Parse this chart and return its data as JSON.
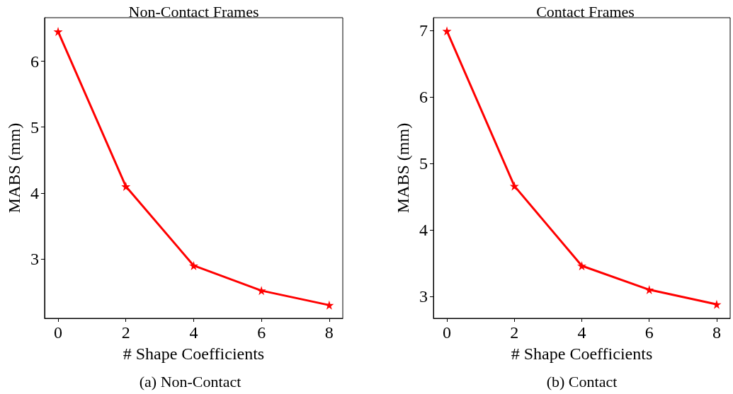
{
  "chart_data": [
    {
      "type": "line",
      "title": "Non-Contact Frames",
      "xlabel": "# Shape Coefficients",
      "ylabel": "MABS (mm)",
      "x": [
        0,
        2,
        4,
        6,
        8
      ],
      "series": [
        {
          "color": "#ff0000",
          "values": [
            6.45,
            4.1,
            2.9,
            2.52,
            2.3
          ]
        }
      ],
      "xlim": [
        -0.4,
        8.4
      ],
      "xticks": [
        0,
        2,
        4,
        6,
        8
      ],
      "ylim": [
        2.1,
        6.66
      ],
      "yticks": [
        3,
        4,
        5,
        6
      ],
      "marker": "star",
      "line_style": "solid",
      "grid": false,
      "annotations": [
        "(a) Non-Contact"
      ]
    },
    {
      "type": "line",
      "title": "Contact Frames",
      "xlabel": "# Shape Coefficients",
      "ylabel": "MABS (mm)",
      "x": [
        0,
        2,
        4,
        6,
        8
      ],
      "series": [
        {
          "color": "#ff0000",
          "values": [
            6.99,
            4.66,
            3.46,
            3.1,
            2.88
          ]
        }
      ],
      "xlim": [
        -0.4,
        8.4
      ],
      "xticks": [
        0,
        2,
        4,
        6,
        8
      ],
      "ylim": [
        2.67,
        7.19
      ],
      "yticks": [
        3,
        4,
        5,
        6,
        7
      ],
      "marker": "star",
      "line_style": "solid",
      "grid": false,
      "annotations": [
        "(b) Contact"
      ]
    }
  ]
}
